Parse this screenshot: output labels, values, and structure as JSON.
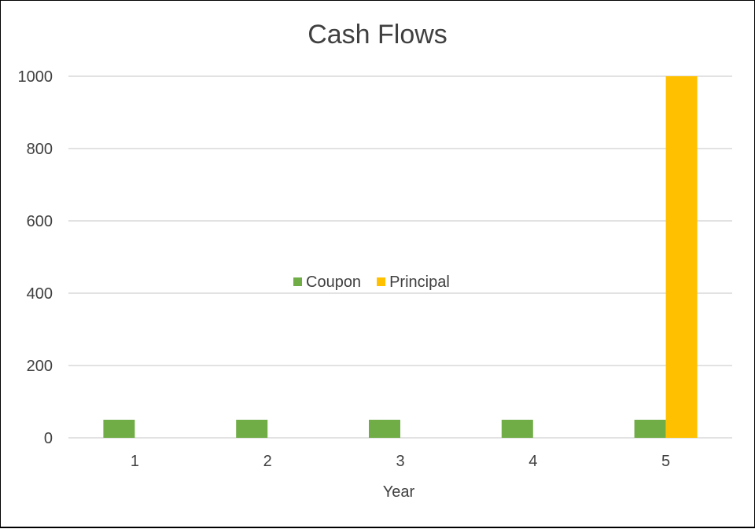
{
  "chart_data": {
    "type": "bar",
    "title": "Cash Flows",
    "xlabel": "Year",
    "ylabel": "",
    "categories": [
      "1",
      "2",
      "3",
      "4",
      "5"
    ],
    "series": [
      {
        "name": "Coupon",
        "color": "#70ad47",
        "values": [
          50,
          50,
          50,
          50,
          50
        ]
      },
      {
        "name": "Principal",
        "color": "#ffc000",
        "values": [
          0,
          0,
          0,
          0,
          1000
        ]
      }
    ],
    "ylim": [
      0,
      1000
    ],
    "yticks": [
      "0",
      "200",
      "400",
      "600",
      "800",
      "1000"
    ],
    "grid": true,
    "legend_position": "center"
  }
}
